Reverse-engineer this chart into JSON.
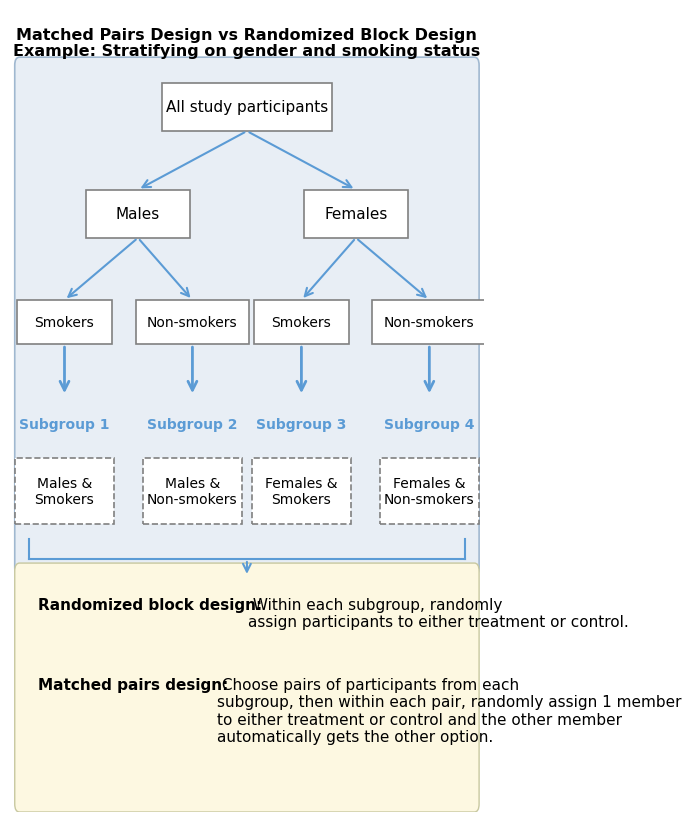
{
  "title_line1": "Matched Pairs Design vs Randomized Block Design",
  "title_line2": "Example: Stratifying on gender and smoking status",
  "bg_diagram_color": "#e8eef5",
  "bg_bottom_color": "#fdf8e1",
  "arrow_color": "#5b9bd5",
  "box_edge_color": "#808080",
  "box_face_color": "#ffffff",
  "dashed_box_edge_color": "#808080",
  "subgroup_label_color": "#5b9bd5",
  "rbd_bold": "Randomized block design:",
  "rbd_text": " Within each subgroup, randomly\nassign participants to either treatment or control.",
  "mpd_bold": "Matched pairs design:",
  "mpd_text": " Choose pairs of participants from each\nsubgroup, then within each pair, randomly assign 1 member\nto either treatment or control and the other member\nautomatically gets the other option."
}
